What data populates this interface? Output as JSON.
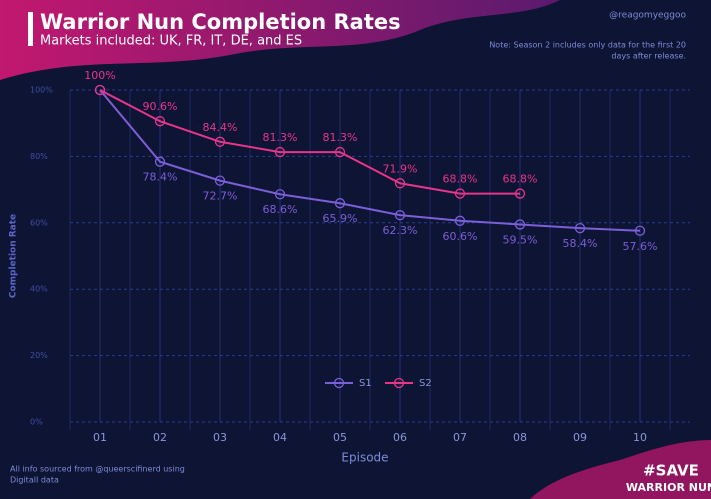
{
  "header": {
    "handle": "@reagomyeggoo",
    "logo": [
      "#SAVE",
      "WARRIOR NUN"
    ]
  },
  "footer": {
    "source": [
      "All info sourced from @queerscifinerd using",
      "DigitalI data"
    ]
  },
  "chart_data": {
    "type": "line",
    "title": "Warrior Nun Completion Rates",
    "subtitle": "Markets included: UK, FR, IT, DE, and ES",
    "note": [
      "Note: Season 2 includes only data for the first 20",
      "days after release."
    ],
    "x_label": "Episode",
    "y_label": "Completion Rate",
    "categories": [
      "01",
      "02",
      "03",
      "04",
      "05",
      "06",
      "07",
      "08",
      "09",
      "10"
    ],
    "series": [
      {
        "name": "S1",
        "color": "#7b5fd9",
        "values": [
          100,
          78.4,
          72.7,
          68.6,
          65.9,
          62.3,
          60.6,
          59.5,
          58.4,
          57.6
        ],
        "value_labels": [
          null,
          "78.4%",
          "72.7%",
          "68.6%",
          "65.9%",
          "62.3%",
          "60.6%",
          "59.5%",
          "58.4%",
          "57.6%"
        ]
      },
      {
        "name": "S2",
        "color": "#e8358c",
        "values": [
          100,
          90.6,
          84.4,
          81.3,
          81.3,
          71.9,
          68.8,
          68.8,
          null,
          null
        ],
        "value_labels": [
          "100%",
          "90.6%",
          "84.4%",
          "81.3%",
          "81.3%",
          "71.9%",
          "68.8%",
          "68.8%",
          null,
          null
        ]
      }
    ],
    "ylim": [
      0,
      100
    ],
    "yticks": [
      {
        "value": 0,
        "label": "0%"
      },
      {
        "value": 20,
        "label": "20%"
      },
      {
        "value": 40,
        "label": "40%"
      },
      {
        "value": 60,
        "label": "60%"
      },
      {
        "value": 80,
        "label": "80%"
      },
      {
        "value": 100,
        "label": "100%"
      }
    ],
    "grid": true
  }
}
